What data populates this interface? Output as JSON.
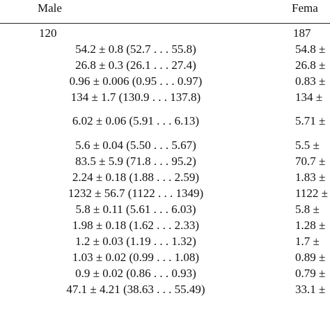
{
  "headers": {
    "male": "Male",
    "female": "Fema"
  },
  "rows": [
    {
      "male": "120",
      "female": "187",
      "align": "left"
    },
    {
      "male": "54.2 ± 0.8 (52.7 . . . 55.8)",
      "female": "54.8 ±"
    },
    {
      "male": "26.8 ± 0.3 (26.1 . . . 27.4)",
      "female": "26.8 ±"
    },
    {
      "male": "0.96 ± 0.006 (0.95 . . . 0.97)",
      "female": "0.83 ±"
    },
    {
      "male": "134 ± 1.7 (130.9 . . . 137.8)",
      "female": "134 ±"
    },
    {
      "male": "6.02 ± 0.06 (5.91 . . . 6.13)",
      "female": "5.71 ±"
    },
    {
      "male": "5.6 ± 0.04 (5.50 . . . 5.67)",
      "female": "5.5 ±"
    },
    {
      "male": "83.5 ± 5.9 (71.8 . . . 95.2)",
      "female": "70.7 ±"
    },
    {
      "male": "2.24 ± 0.18 (1.88 . . . 2.59)",
      "female": "1.83 ±"
    },
    {
      "male": "1232 ± 56.7 (1122 . . . 1349)",
      "female": "1122 ±"
    },
    {
      "male": "5.8 ± 0.11 (5.61 . . . 6.03)",
      "female": "5.8 ±"
    },
    {
      "male": "1.98 ± 0.18 (1.62 . . . 2.33)",
      "female": "1.28 ±"
    },
    {
      "male": "1.2 ± 0.03 (1.19 . . . 1.32)",
      "female": "1.7 ±"
    },
    {
      "male": "1.03 ± 0.02 (0.99 . . . 1.08)",
      "female": "0.89 ±"
    },
    {
      "male": "0.9 ± 0.02 (0.86 . . . 0.93)",
      "female": "0.79 ±"
    },
    {
      "male": "47.1 ± 4.21 (38.63 . . . 55.49)",
      "female": "33.1 ±"
    }
  ]
}
